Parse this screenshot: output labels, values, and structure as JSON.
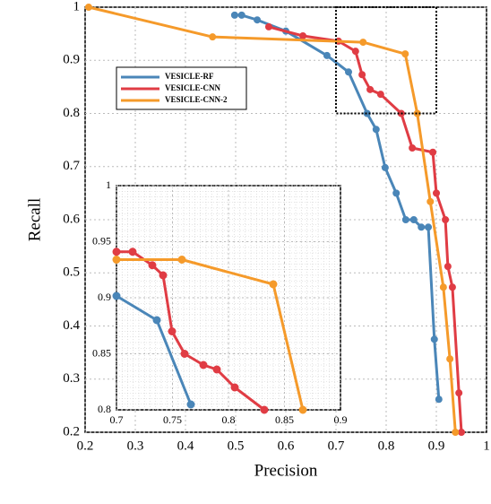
{
  "chart_data": [
    {
      "type": "line",
      "xlabel": "Precision",
      "ylabel": "Recall",
      "xlim": [
        0.2,
        1
      ],
      "ylim": [
        0.2,
        1
      ],
      "xticks": [
        0.2,
        0.3,
        0.4,
        0.5,
        0.6,
        0.7,
        0.8,
        0.9,
        1
      ],
      "yticks": [
        0.2,
        0.3,
        0.4,
        0.5,
        0.6,
        0.7,
        0.8,
        0.9,
        1
      ],
      "grid": true,
      "legend": "upper left",
      "series": [
        {
          "name": "VESICLE-RF",
          "color": "#4a86b8",
          "x": [
            0.498,
            0.512,
            0.543,
            0.6,
            0.682,
            0.725,
            0.762,
            0.78,
            0.798,
            0.82,
            0.839,
            0.855,
            0.87,
            0.884,
            0.896,
            0.905
          ],
          "values": [
            0.985,
            0.985,
            0.976,
            0.955,
            0.909,
            0.878,
            0.8,
            0.77,
            0.698,
            0.65,
            0.6,
            0.6,
            0.586,
            0.586,
            0.375,
            0.262
          ]
        },
        {
          "name": "VESICLE-CNN",
          "color": "#e03c44",
          "x": [
            0.566,
            0.634,
            0.705,
            0.739,
            0.752,
            0.768,
            0.789,
            0.83,
            0.852,
            0.893,
            0.9,
            0.918,
            0.923,
            0.932,
            0.945,
            0.95
          ],
          "values": [
            0.963,
            0.946,
            0.936,
            0.917,
            0.873,
            0.845,
            0.836,
            0.8,
            0.735,
            0.727,
            0.65,
            0.6,
            0.512,
            0.473,
            0.274,
            0.2
          ]
        },
        {
          "name": "VESICLE-CNN-2",
          "color": "#f59a2a",
          "x": [
            0.207,
            0.454,
            0.754,
            0.838,
            0.862,
            0.888,
            0.914,
            0.927,
            0.938
          ],
          "values": [
            1,
            0.944,
            0.934,
            0.912,
            0.8,
            0.634,
            0.473,
            0.338,
            0.2
          ]
        }
      ]
    },
    {
      "type": "line",
      "xlim": [
        0.7,
        0.9
      ],
      "ylim": [
        0.8,
        1
      ],
      "xticks": [
        0.7,
        0.75,
        0.8,
        0.85,
        0.9
      ],
      "yticks": [
        0.8,
        0.85,
        0.9,
        0.95,
        1
      ],
      "grid": true,
      "series": [
        {
          "color": "#4a86b8",
          "x": [
            0.7,
            0.736,
            0.7664
          ],
          "values": [
            0.9016,
            0.88,
            0.8048
          ]
        },
        {
          "color": "#e03c44",
          "x": [
            0.7,
            0.7144,
            0.732,
            0.7416,
            0.7496,
            0.7608,
            0.7776,
            0.7896,
            0.8056,
            0.832
          ],
          "values": [
            0.941,
            0.941,
            0.929,
            0.92,
            0.87,
            0.85,
            0.84,
            0.836,
            0.82,
            0.8
          ]
        },
        {
          "color": "#f59a2a",
          "x": [
            0.7,
            0.7584,
            0.84,
            0.8664
          ],
          "values": [
            0.934,
            0.934,
            0.912,
            0.8
          ]
        }
      ]
    }
  ]
}
